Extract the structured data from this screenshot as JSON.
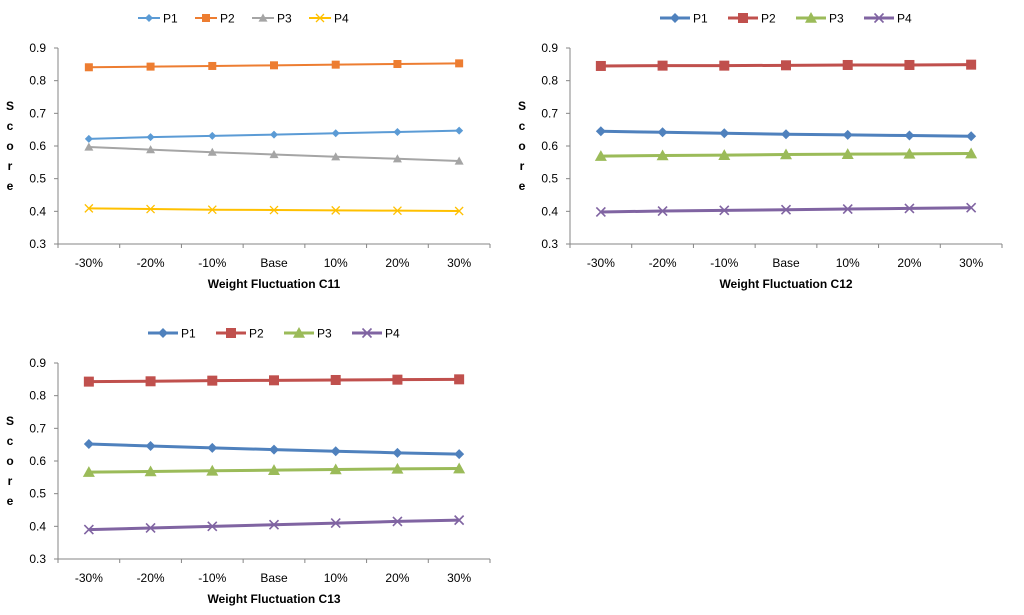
{
  "chart_data": [
    {
      "type": "line",
      "xlabel": "Weight Fluctuation C11",
      "ylabel": "Score",
      "categories": [
        "-30%",
        "-20%",
        "-10%",
        "Base",
        "10%",
        "20%",
        "30%"
      ],
      "ylim": [
        0.3,
        0.9
      ],
      "yticks": [
        "0.3",
        "0.4",
        "0.5",
        "0.6",
        "0.7",
        "0.8",
        "0.9"
      ],
      "grid": false,
      "legend": "top-left",
      "series": [
        {
          "name": "P1",
          "color": "#5B9BD5",
          "marker": "diamond",
          "values": [
            0.622,
            0.627,
            0.631,
            0.635,
            0.639,
            0.643,
            0.647
          ]
        },
        {
          "name": "P2",
          "color": "#ED7D31",
          "marker": "square",
          "values": [
            0.841,
            0.843,
            0.845,
            0.847,
            0.849,
            0.851,
            0.853
          ]
        },
        {
          "name": "P3",
          "color": "#A5A5A5",
          "marker": "triangle",
          "values": [
            0.597,
            0.589,
            0.581,
            0.574,
            0.567,
            0.561,
            0.554
          ]
        },
        {
          "name": "P4",
          "color": "#FFC000",
          "marker": "x",
          "values": [
            0.409,
            0.407,
            0.405,
            0.404,
            0.403,
            0.402,
            0.401
          ]
        }
      ]
    },
    {
      "type": "line",
      "xlabel": "Weight Fluctuation C12",
      "ylabel": "Score",
      "categories": [
        "-30%",
        "-20%",
        "-10%",
        "Base",
        "10%",
        "20%",
        "30%"
      ],
      "ylim": [
        0.3,
        0.9
      ],
      "yticks": [
        "0.3",
        "0.4",
        "0.5",
        "0.6",
        "0.7",
        "0.8",
        "0.9"
      ],
      "grid": false,
      "legend": "top-left",
      "series": [
        {
          "name": "P1",
          "color": "#4F81BD",
          "marker": "diamond",
          "values": [
            0.645,
            0.642,
            0.639,
            0.636,
            0.634,
            0.632,
            0.63
          ]
        },
        {
          "name": "P2",
          "color": "#C0504D",
          "marker": "square",
          "values": [
            0.845,
            0.846,
            0.846,
            0.847,
            0.848,
            0.848,
            0.849
          ]
        },
        {
          "name": "P3",
          "color": "#9BBB59",
          "marker": "triangle",
          "values": [
            0.569,
            0.571,
            0.572,
            0.574,
            0.575,
            0.576,
            0.577
          ]
        },
        {
          "name": "P4",
          "color": "#8064A2",
          "marker": "x",
          "values": [
            0.398,
            0.401,
            0.403,
            0.405,
            0.407,
            0.409,
            0.411
          ]
        }
      ]
    },
    {
      "type": "line",
      "xlabel": "Weight Fluctuation C13",
      "ylabel": "Score",
      "categories": [
        "-30%",
        "-20%",
        "-10%",
        "Base",
        "10%",
        "20%",
        "30%"
      ],
      "ylim": [
        0.3,
        0.9
      ],
      "yticks": [
        "0.3",
        "0.4",
        "0.5",
        "0.6",
        "0.7",
        "0.8",
        "0.9"
      ],
      "grid": false,
      "legend": "top-left",
      "series": [
        {
          "name": "P1",
          "color": "#4F81BD",
          "marker": "diamond",
          "values": [
            0.652,
            0.646,
            0.64,
            0.635,
            0.63,
            0.625,
            0.621
          ]
        },
        {
          "name": "P2",
          "color": "#C0504D",
          "marker": "square",
          "values": [
            0.843,
            0.844,
            0.846,
            0.847,
            0.848,
            0.849,
            0.85
          ]
        },
        {
          "name": "P3",
          "color": "#9BBB59",
          "marker": "triangle",
          "values": [
            0.566,
            0.568,
            0.57,
            0.572,
            0.574,
            0.576,
            0.577
          ]
        },
        {
          "name": "P4",
          "color": "#8064A2",
          "marker": "x",
          "values": [
            0.39,
            0.395,
            0.4,
            0.405,
            0.41,
            0.415,
            0.419
          ]
        }
      ]
    }
  ]
}
